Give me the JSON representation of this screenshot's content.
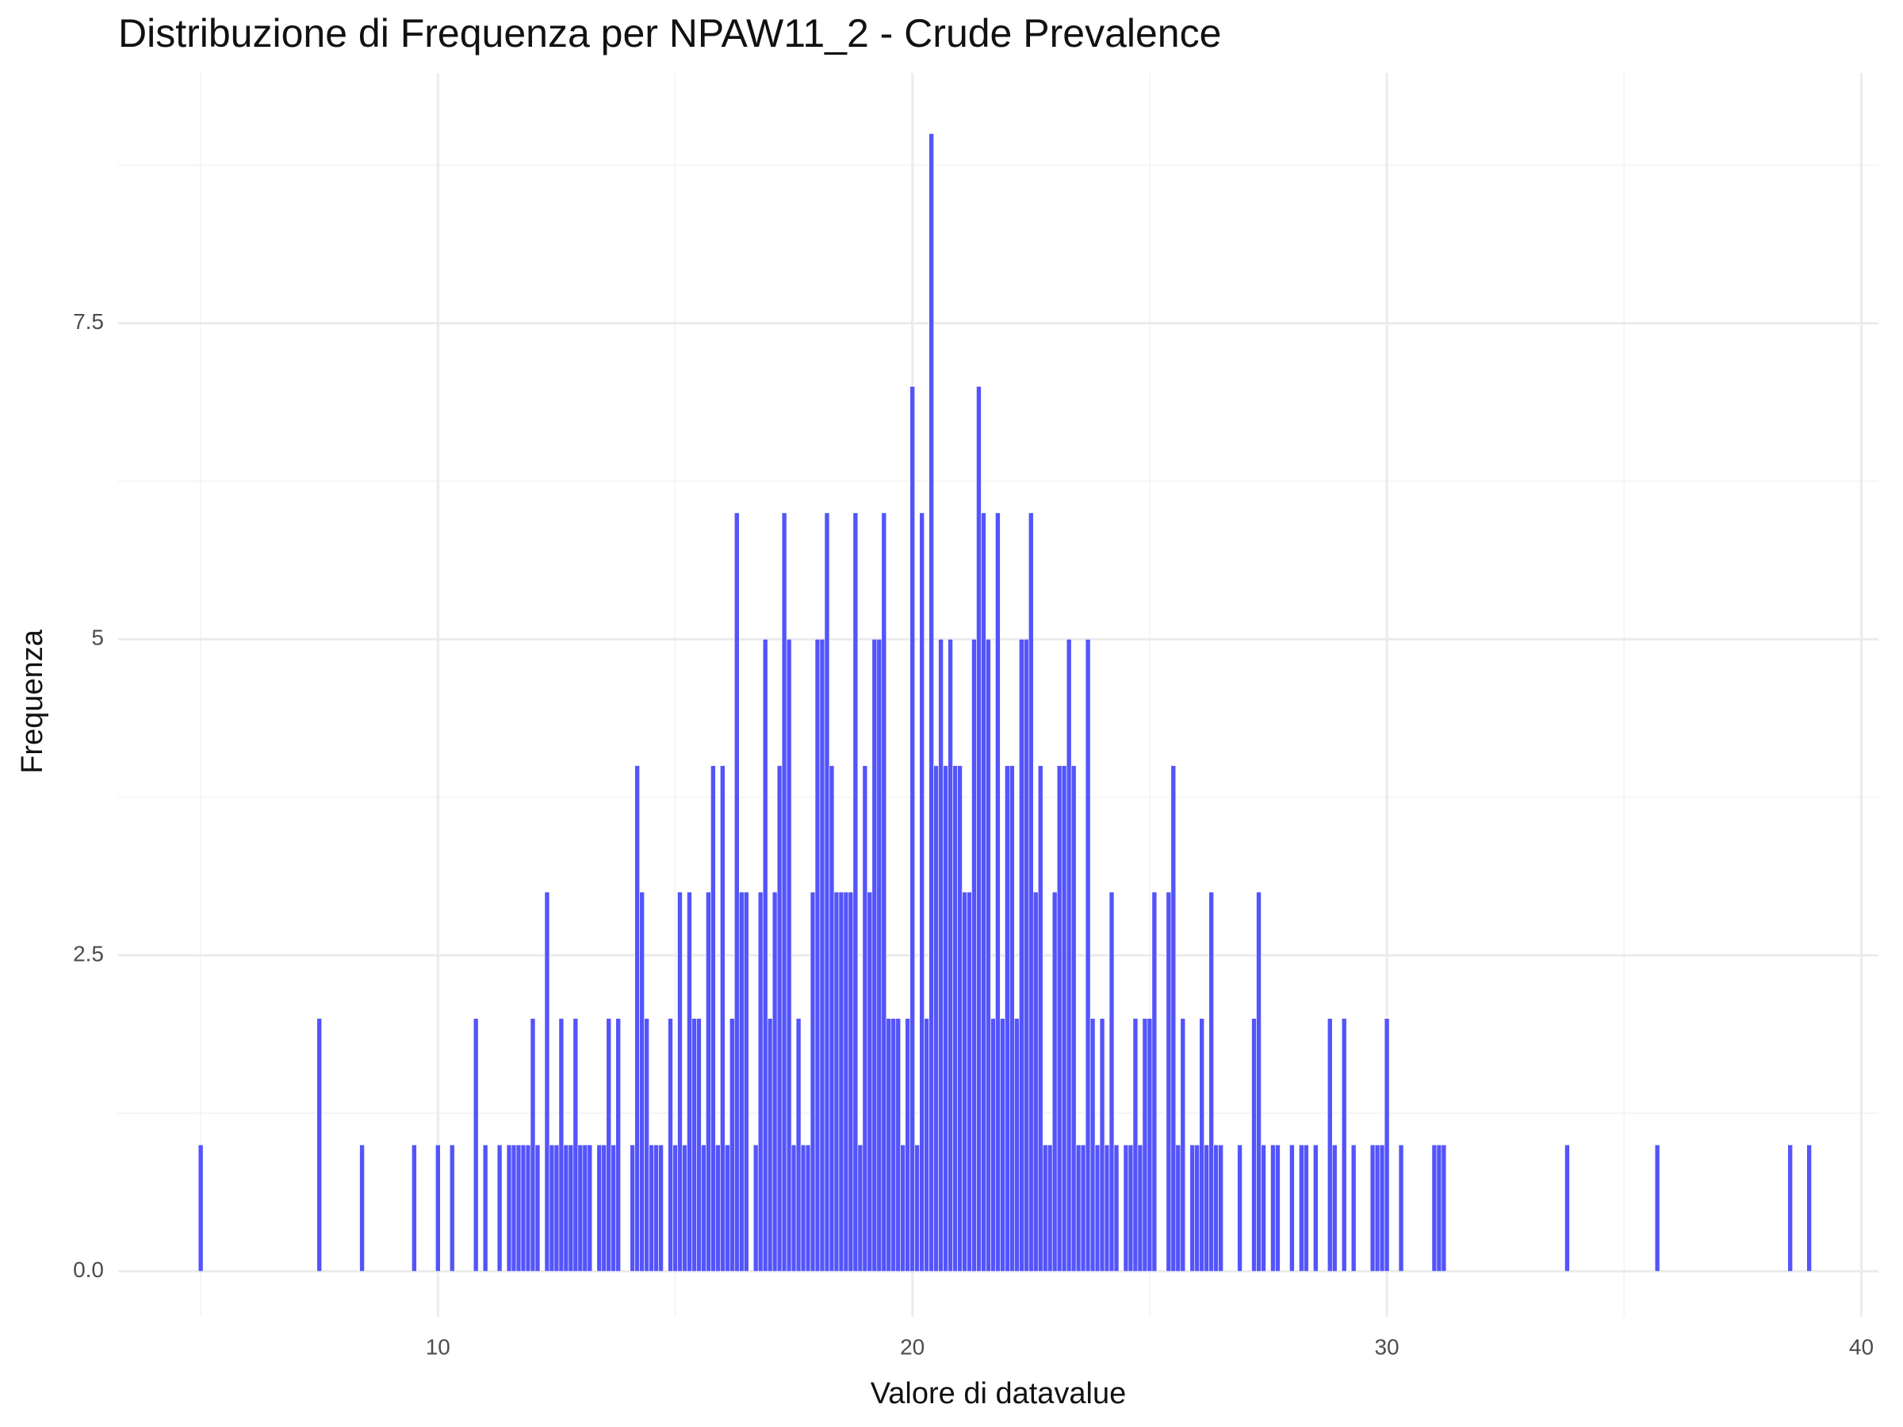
{
  "chart_data": {
    "type": "histogram",
    "title": "Distribuzione di Frequenza per NPAW11_2 - Crude Prevalence",
    "x_label": "Valore di datavalue",
    "y_label": "Frequenza",
    "color": "#4b4bfa",
    "grid": true,
    "xlim": [
      3.26,
      40.36
    ],
    "ylim": [
      -0.36,
      9.48
    ],
    "xticks": [
      10,
      20,
      30,
      40
    ],
    "yticks": [
      {
        "value": 0,
        "label": "0.0"
      },
      2.5,
      5.0,
      7.5
    ],
    "xminor": [
      5,
      15,
      25,
      35
    ],
    "yminor": [
      1.25,
      3.75,
      6.25,
      8.75
    ],
    "bins": [
      4.95,
      5.05,
      7.45,
      7.55,
      8.35,
      8.45,
      9.45,
      9.55,
      9.95,
      10.05,
      10.25,
      10.35,
      10.75,
      10.85,
      10.95,
      11.05,
      11.25,
      11.35,
      11.45,
      11.55,
      11.65,
      11.75,
      11.85,
      11.95,
      12.05,
      12.15,
      12.25,
      12.35,
      12.45,
      12.55,
      12.65,
      12.75,
      12.85,
      12.95,
      13.05,
      13.15,
      13.25,
      13.35,
      13.45,
      13.55,
      13.65,
      13.75,
      13.85,
      14.05,
      14.15,
      14.25,
      14.35,
      14.45,
      14.55,
      14.65,
      14.75,
      14.85,
      14.95,
      15.05,
      15.15,
      15.25,
      15.35,
      15.45,
      15.55,
      15.65,
      15.75,
      15.85,
      15.95,
      16.05,
      16.15,
      16.25,
      16.35,
      16.45,
      16.55,
      16.65,
      16.75,
      16.85,
      16.95,
      17.05,
      17.15,
      17.25,
      17.35,
      17.45,
      17.55,
      17.65,
      17.75,
      17.85,
      17.95,
      18.05,
      18.15,
      18.25,
      18.35,
      18.45,
      18.55,
      18.65,
      18.75,
      18.85,
      18.95,
      19.05,
      19.15,
      19.25,
      19.35,
      19.45,
      19.55,
      19.65,
      19.75,
      19.85,
      19.95,
      20.05,
      20.15,
      20.25,
      20.35,
      20.45,
      20.55,
      20.65,
      20.75,
      20.85,
      20.95,
      21.05,
      21.15,
      21.25,
      21.35,
      21.45,
      21.55,
      21.65,
      21.75,
      21.85,
      21.95,
      22.05,
      22.15,
      22.25,
      22.35,
      22.45,
      22.55,
      22.65,
      22.75,
      22.85,
      22.95,
      23.05,
      23.15,
      23.25,
      23.35,
      23.45,
      23.55,
      23.65,
      23.75,
      23.85,
      23.95,
      24.05,
      24.15,
      24.25,
      24.35,
      24.45,
      24.55,
      24.65,
      24.75,
      24.85,
      24.95,
      25.05,
      25.15,
      25.35,
      25.45,
      25.55,
      25.65,
      25.75,
      25.85,
      25.95,
      26.05,
      26.15,
      26.25,
      26.35,
      26.45,
      26.55,
      26.85,
      26.95,
      27.15,
      27.25,
      27.35,
      27.45,
      27.55,
      27.65,
      27.75,
      27.95,
      28.05,
      28.15,
      28.25,
      28.35,
      28.45,
      28.55,
      28.75,
      28.85,
      28.95,
      29.05,
      29.15,
      29.25,
      29.35,
      29.65,
      29.75,
      29.85,
      29.95,
      30.05,
      30.25,
      30.35,
      30.95,
      31.05,
      31.15,
      31.25,
      33.75,
      33.85,
      35.65,
      35.75,
      38.45,
      38.55,
      38.85,
      38.95
    ],
    "values": [
      1,
      0,
      2,
      0,
      1,
      0,
      1,
      0,
      1,
      0,
      1,
      0,
      2,
      0,
      1,
      0,
      1,
      0,
      1,
      1,
      1,
      1,
      1,
      2,
      1,
      0,
      3,
      1,
      1,
      2,
      1,
      1,
      2,
      1,
      1,
      1,
      0,
      1,
      1,
      2,
      1,
      2,
      0,
      1,
      4,
      3,
      2,
      1,
      1,
      1,
      0,
      2,
      1,
      3,
      1,
      3,
      2,
      2,
      1,
      3,
      4,
      1,
      4,
      1,
      2,
      6,
      3,
      3,
      0,
      1,
      3,
      5,
      2,
      3,
      4,
      6,
      5,
      1,
      2,
      1,
      1,
      3,
      5,
      5,
      6,
      4,
      3,
      3,
      3,
      3,
      6,
      1,
      4,
      3,
      5,
      5,
      6,
      2,
      2,
      2,
      1,
      2,
      7,
      1,
      6,
      2,
      9,
      4,
      5,
      4,
      5,
      4,
      4,
      3,
      3,
      5,
      7,
      6,
      5,
      2,
      6,
      2,
      4,
      4,
      2,
      5,
      5,
      6,
      3,
      4,
      1,
      1,
      3,
      4,
      4,
      5,
      4,
      1,
      1,
      5,
      2,
      1,
      2,
      1,
      3,
      1,
      0,
      1,
      1,
      2,
      1,
      2,
      2,
      3,
      0,
      3,
      4,
      1,
      2,
      0,
      1,
      1,
      2,
      1,
      3,
      1,
      1,
      0,
      1,
      0,
      2,
      3,
      1,
      0,
      1,
      1,
      0,
      1,
      0,
      1,
      1,
      0,
      1,
      0,
      2,
      1,
      0,
      2,
      0,
      1,
      0,
      1,
      1,
      1,
      2,
      0,
      1,
      0,
      1,
      1,
      1,
      0,
      1,
      0,
      1,
      0,
      1,
      0,
      1
    ]
  }
}
